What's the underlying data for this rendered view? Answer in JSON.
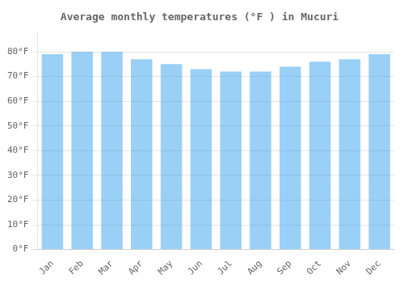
{
  "chart_data": {
    "type": "bar",
    "title": "Average monthly temperatures (°F ) in Mucuri",
    "categories": [
      "Jan",
      "Feb",
      "Mar",
      "Apr",
      "May",
      "Jun",
      "Jul",
      "Aug",
      "Sep",
      "Oct",
      "Nov",
      "Dec"
    ],
    "values": [
      79,
      80,
      80,
      77,
      75,
      73,
      72,
      72,
      74,
      76,
      77,
      79
    ],
    "ylim": [
      0,
      88
    ],
    "yticks": [
      {
        "value": 0,
        "label": "0°F"
      },
      {
        "value": 10,
        "label": "10°F"
      },
      {
        "value": 20,
        "label": "20°F"
      },
      {
        "value": 30,
        "label": "30°F"
      },
      {
        "value": 40,
        "label": "40°F"
      },
      {
        "value": 50,
        "label": "50°F"
      },
      {
        "value": 60,
        "label": "60°F"
      },
      {
        "value": 70,
        "label": "70°F"
      },
      {
        "value": 80,
        "label": "80°F"
      }
    ],
    "grid": true
  }
}
